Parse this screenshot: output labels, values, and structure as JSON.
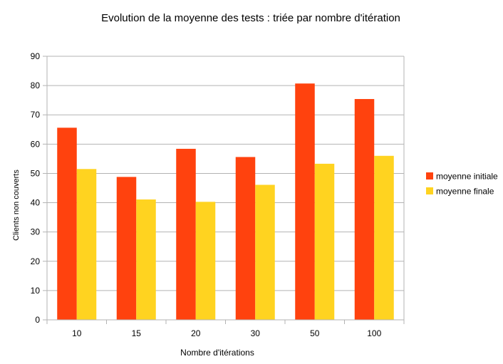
{
  "chart_data": {
    "type": "bar",
    "title": "Evolution de la moyenne des tests : triée par nombre d'itération",
    "xlabel": "Nombre d'itérations",
    "ylabel": "Clients non couverts",
    "categories": [
      "10",
      "15",
      "20",
      "30",
      "50",
      "100"
    ],
    "ylim": [
      0,
      90
    ],
    "yticks": [
      "0",
      "10",
      "20",
      "30",
      "40",
      "50",
      "60",
      "70",
      "80",
      "90"
    ],
    "grid": true,
    "legend_position": "right",
    "series": [
      {
        "name": "moyenne initiale",
        "color": "#ff420e",
        "values": [
          65.6,
          48.8,
          58.4,
          55.6,
          80.7,
          75.4
        ]
      },
      {
        "name": "moyenne finale",
        "color": "#ffd320",
        "values": [
          51.5,
          41.1,
          40.3,
          46.1,
          53.3,
          56.0
        ]
      }
    ]
  }
}
